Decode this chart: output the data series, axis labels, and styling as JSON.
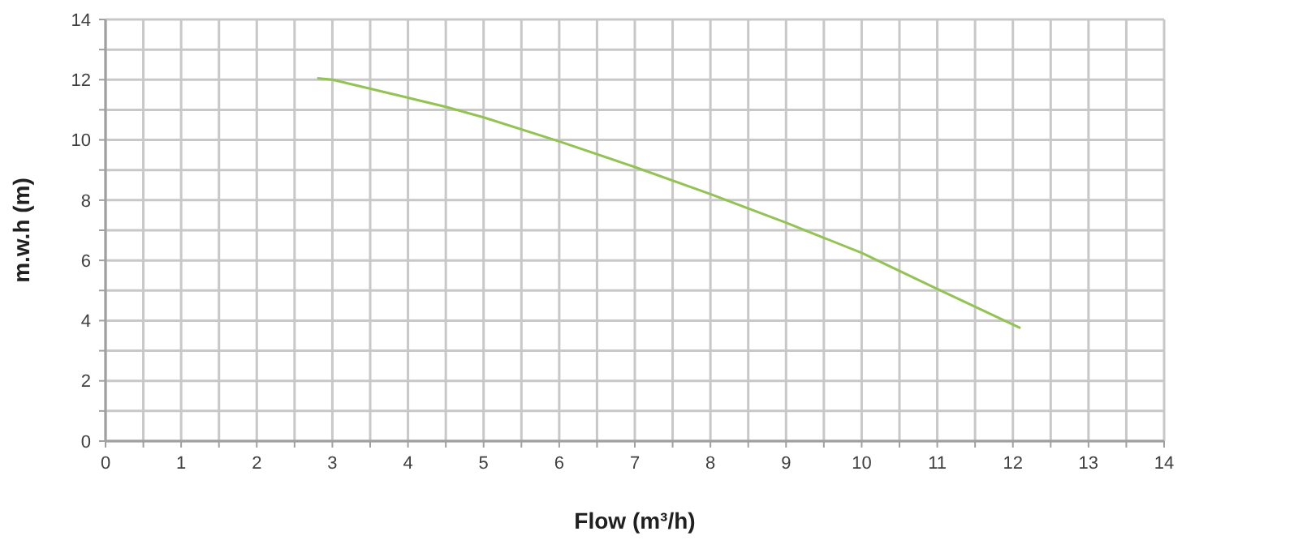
{
  "chart_data": {
    "type": "line",
    "xlabel": "Flow (m³/h)",
    "ylabel": "m.w.h (m)",
    "series": [
      {
        "color": "#92c353",
        "x": [
          2.8,
          3,
          4,
          4.5,
          5,
          6,
          7,
          8,
          9,
          10,
          11,
          12.1
        ],
        "values": [
          12.05,
          12,
          11.4,
          11.1,
          10.75,
          9.95,
          9.1,
          8.2,
          7.25,
          6.25,
          5.05,
          3.75
        ]
      }
    ],
    "xlim": [
      0,
      14
    ],
    "xticks": [
      0,
      {
        "value": 0.5,
        "label": null
      },
      1,
      {
        "value": 1.5,
        "label": null
      },
      2,
      {
        "value": 2.5,
        "label": null
      },
      3,
      {
        "value": 3.5,
        "label": null
      },
      4,
      {
        "value": 4.5,
        "label": null
      },
      5,
      {
        "value": 5.5,
        "label": null
      },
      6,
      {
        "value": 6.5,
        "label": null
      },
      7,
      {
        "value": 7.5,
        "label": null
      },
      8,
      {
        "value": 8.5,
        "label": null
      },
      9,
      {
        "value": 9.5,
        "label": null
      },
      10,
      {
        "value": 10.5,
        "label": null
      },
      11,
      {
        "value": 11.5,
        "label": null
      },
      12,
      {
        "value": 12.5,
        "label": null
      },
      13,
      {
        "value": 13.5,
        "label": null
      },
      14
    ],
    "ylim": [
      0,
      14
    ],
    "yticks": [
      0,
      {
        "value": 1,
        "label": null
      },
      2,
      {
        "value": 3,
        "label": null
      },
      4,
      {
        "value": 5,
        "label": null
      },
      6,
      {
        "value": 7,
        "label": null
      },
      8,
      {
        "value": 9,
        "label": null
      },
      10,
      {
        "value": 11,
        "label": null
      },
      12,
      {
        "value": 13,
        "label": null
      },
      14
    ],
    "grid": true,
    "marker": "none",
    "line_style": "solid"
  }
}
